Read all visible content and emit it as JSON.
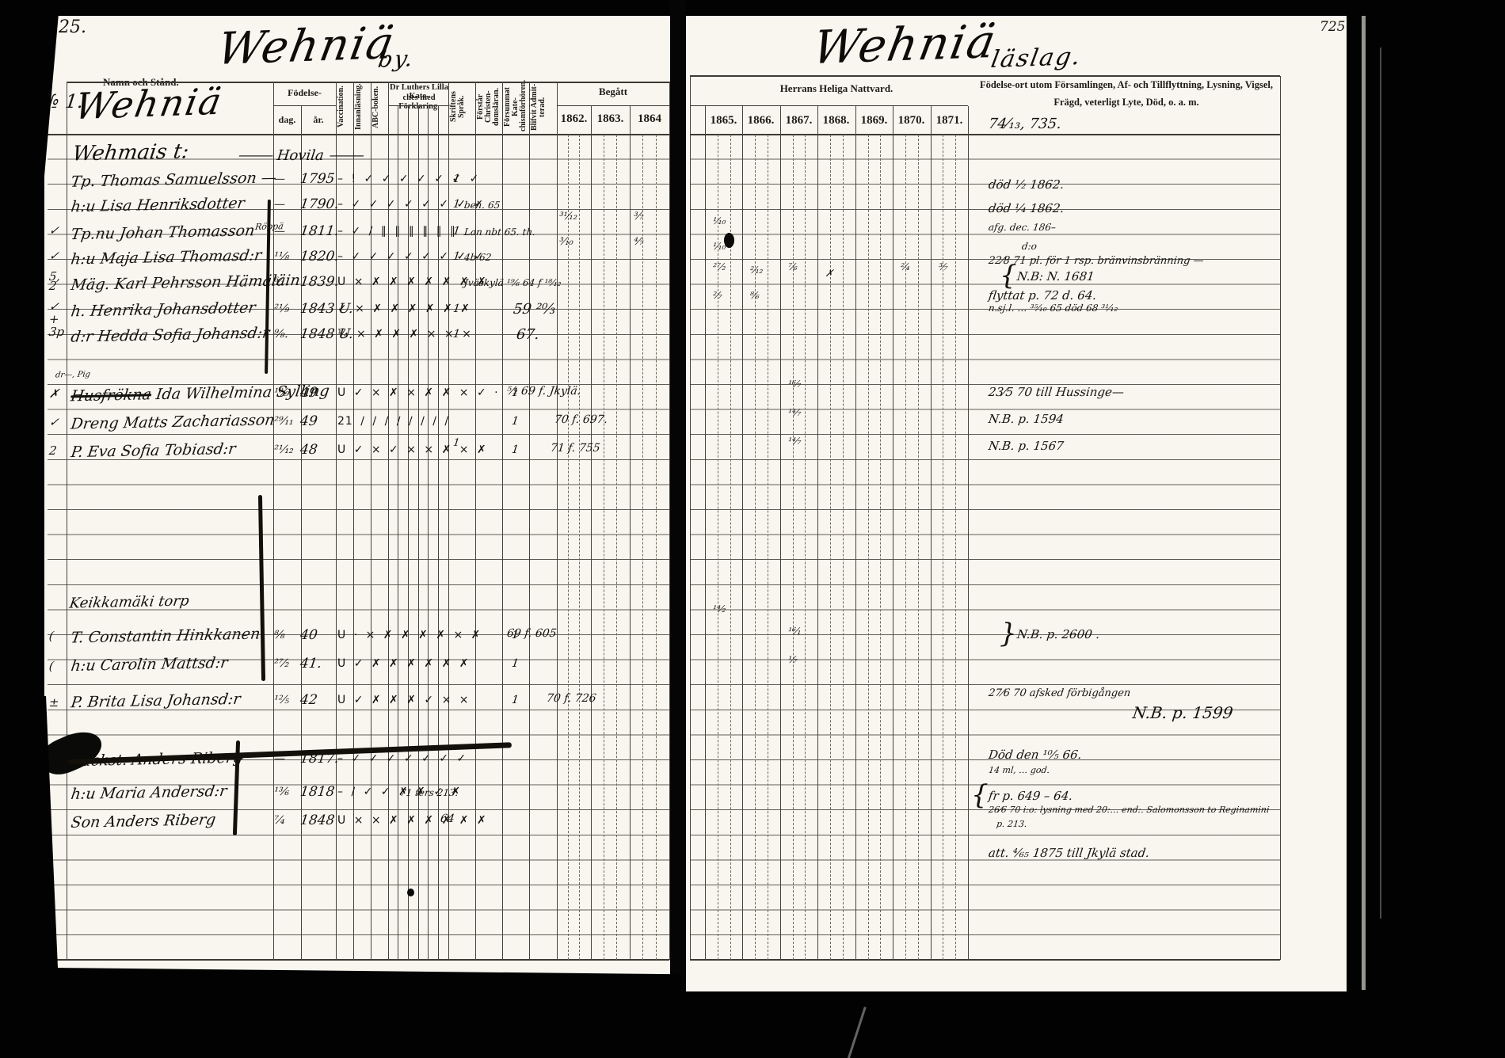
{
  "page_numbers": {
    "left": "125.",
    "right": "725."
  },
  "left_page": {
    "title_script": "Wehniä",
    "title_suffix": "by.",
    "entry_no": "№ 1.",
    "header_script": "Wehniä",
    "header": {
      "namn": "Namn och Stånd.",
      "fodelse": "Födelse-",
      "dag": "dag.",
      "ar": "år.",
      "vaccination": "Vaccination.",
      "innanlasning": "Innanläsning.",
      "abc": "ABC-boken.",
      "kateches_line1": "Dr Luthers Lilla Kate-",
      "kateches_line2": "ches med Förklaring.",
      "kateches_cols": [
        "1.",
        "2.",
        "3.",
        "4",
        "5.",
        "6."
      ],
      "skrift": "Skriftens Språk.",
      "forstar": "Förstår Christen-domsläran.",
      "forsummat": "Försummat Kate-chismförhören.",
      "blifvit": "Blifvit Admit-terad.",
      "begatt": "Begått"
    },
    "years": [
      "1862.",
      "1863.",
      "1864"
    ],
    "rows": [
      {
        "name": "Wehmais t:",
        "name2": "⸻ Hovila ⸻"
      },
      {
        "name": "Tp. Thomas Samuelsson —",
        "dag": "—",
        "ar": "1795",
        "marks": "– ! ✓ ✓ ✓ ✓ ✓ ✓ ✓",
        "skrift": "1"
      },
      {
        "name": "h:u Lisa Henriksdotter",
        "dag": "—",
        "ar": "1790.",
        "marks": "– ✓ ✓ ✓ ✓ ✓ ✓ ✓ ✓",
        "skrift": "1",
        "note": "beh. 65"
      },
      {
        "name": "Tp.nu Johan Thomasson",
        "sup": "Röppä",
        "dag": "—",
        "ar": "1811.",
        "marks": "– ✓ ∕ ∥ ∥ ∥ ∥ ∥ ∥",
        "skrift": "1",
        "note": "Lan nbt 65. th."
      },
      {
        "name": "h:u Maja Lisa Thomasd:r",
        "dag": "¹¹⁄₈",
        "ar": "1820.",
        "marks": "– ✓ ✓ ✓ ✓ ✓ ✓ ✓ ✓",
        "skrift": "1",
        "note": "4b 62"
      },
      {
        "name": "Mäg. Karl Pehrsson Hämäläin",
        "dag": "⁶⁄₁",
        "ar": "1839.",
        "marks": "U × ✗ ✗ ✗ ✗ ✗ ✗ ✗",
        "note": "Jväskylä ¹⁹⁄₆ 64 f ¹⁸⁄₁₂"
      },
      {
        "name": "h. Henrika Johansdotter",
        "dag": "²¹⁄₉",
        "ar": "1843 U.",
        "marks": "✓ × ✗ ✗ ✗ ✗ ✗ ✗",
        "skrift": "1",
        "begatt": "59 ²⁰⁄₃"
      },
      {
        "name": "d:r Hedda Sofia Johansd:r",
        "dag": "⁹⁄₈.",
        "ar": "1848 U.",
        "marks": "¼ × ✗ ✗ ✗ × × ×",
        "skrift": "1",
        "begatt": "67."
      },
      {
        "name": "dr—, Pig"
      },
      {
        "name_struck": "Husfrökna",
        "name": "Ida Wilhelmina Sylling",
        "dag": "¹⁰⁄₉",
        "ar": "49",
        "marks": "U ✓ × ✗ × ✗ ✗ × ✓ ·",
        "blifvit": "1",
        "begatt": "⁵⁄₂ 69 f. Jkylä."
      },
      {
        "name": "Dreng Matts Zachariasson",
        "dag": "²⁹⁄₁₁",
        "ar": "49",
        "marks": "21 ∕ ∕ ∕ ∕ ∕ ∕ ∕ ∕",
        "blifvit": "1",
        "begatt": "70 f. 697."
      },
      {
        "name": "P. Eva Sofia Tobiasd:r",
        "dag": "²¹⁄₁₂",
        "ar": "48",
        "marks": "U ✓ × ✓ × × ✗ × ✗",
        "blifvit": "1",
        "begatt": "71 f. 755"
      },
      {
        "name": "Keikkamäki torp"
      },
      {
        "name": "T. Constantin Hinkkanen",
        "dag": "⁸⁄₈",
        "ar": "40",
        "marks": "U · × ✗ ✗ ✗ ✗ × ✗",
        "blifvit": "1",
        "begatt": "69 f. 605"
      },
      {
        "name": "h:u Carolin Mattsd:r",
        "dag": "²⁷⁄₂",
        "ar": "41.",
        "marks": "U ✓ ✗ ✗ ✗ ✗ ✗ ✗",
        "blifvit": "1"
      },
      {
        "name": "P. Brita Lisa Johansd:r",
        "dag": "¹²⁄₅",
        "ar": "42",
        "marks": "U ✓ ✗ ✗ ✗ ✓ × ×",
        "blifvit": "1",
        "begatt": "70 f. 726"
      },
      {
        "name": "Backst. Anders Riberg",
        "strike": true,
        "dag": "—",
        "ar": "1817.",
        "marks": "– ✓ ✓ ✓ ✓ ✓ ✓ ✓"
      },
      {
        "name": "h:u Maria Andersd:r",
        "dag": "¹³⁄₆",
        "ar": "1818",
        "marks": "– ∕ ✓ ✓ ✗ ✗ ✓ ✗",
        "note": "71 ters 213."
      },
      {
        "name": "Son Anders Riberg",
        "dag": "⁷⁄₄",
        "ar": "1848",
        "marks": "U × × ✗ ✗ ✗ ✗ ✗ ✗",
        "begatt": "64"
      }
    ],
    "stray_marks": [
      "³¹⁄₁₂",
      "³⁄₁₀",
      "³⁄₇",
      "⁴⁄₇",
      "1"
    ],
    "margin_marks": [
      "✓",
      "✓",
      "5,",
      "2",
      "✓",
      "+",
      "3p",
      "✗",
      "✓",
      "2",
      "(",
      "(",
      "±"
    ]
  },
  "right_page": {
    "title_script": "Wehniä",
    "title_suffix": "läslag.",
    "nattvard_label": "Herrans Heliga Nattvard.",
    "years": [
      "1865.",
      "1866.",
      "1867.",
      "1868.",
      "1869.",
      "1870.",
      "1871."
    ],
    "notes_header_line1": "Födelse-ort utom Församlingen, Af- och Tillflyttning, Lysning, Vigsel,",
    "notes_header_line2": "Frägd, veterligt Lyte, Död, o. a. m.",
    "notes": [
      {
        "text": "74⁄₁₃, 735."
      },
      {
        "text": "död ¹⁄₂ 1862."
      },
      {
        "text": "död ¹⁄₄ 1862."
      },
      {
        "text": "afg. dec. 186–"
      },
      {
        "text": "d:o"
      },
      {
        "text": "22⁄8 71 pl. för 1 rsp. bränvinsbränning —"
      },
      {
        "text": "N.B: N. 1681",
        "brace": "{"
      },
      {
        "text": "flyttat p. 72 d. 64."
      },
      {
        "text": "n.sj.l. … ³⁵⁄₁₀ 65      död 68 ³¹⁄₁₂"
      },
      {
        "text": "23⁄5 70 till Hussinge—"
      },
      {
        "text": "N.B. p. 1594"
      },
      {
        "text": "N.B. p. 1567"
      },
      {
        "text": "N.B. p. 2600 .",
        "brace": "}"
      },
      {
        "text": "27⁄6 70 afsked förbigången"
      },
      {
        "text": "N.B. p. 1599"
      },
      {
        "text": "Död den ¹⁰⁄₅ 66."
      },
      {
        "text": "14 ml, … god."
      },
      {
        "text": "fr p. 649 – 64.",
        "brace": "{"
      },
      {
        "text": "26⁄6 70 i:o: lysning med 20:… end:. Salomonsson to Reginamini"
      },
      {
        "text": "p. 213."
      },
      {
        "text": "att. ⁴⁄₆₅ 1875 till Jkylä stad."
      }
    ],
    "year_marks": [
      {
        "year": "1865.",
        "text": "¹⁄₁₀"
      },
      {
        "year": "1865.",
        "text": "¹⁄₁₀"
      },
      {
        "year": "1865.",
        "text": "²⁷⁄₂"
      },
      {
        "year": "1866.",
        "text": "²⁄₁₂"
      },
      {
        "year": "1867.",
        "text": "⁷⁄₆"
      },
      {
        "year": "1868.",
        "text": "✗"
      },
      {
        "year": "1870.",
        "text": "²⁄₄"
      },
      {
        "year": "1871.",
        "text": "³⁄₇"
      },
      {
        "year": "1865.",
        "text": "²⁄₇"
      },
      {
        "year": "1866.",
        "text": "⁸⁄₆"
      },
      {
        "year": "1867.",
        "text": "¹⁶⁄₇"
      },
      {
        "year": "1867.",
        "text": "¹⁴⁄₇"
      },
      {
        "year": "1867.",
        "text": "¹⁴⁄₇"
      },
      {
        "year": "1865.",
        "text": "¹⁴⁄₂"
      },
      {
        "year": "1867.",
        "text": "¹⁶⁄₁"
      },
      {
        "year": "1867.",
        "text": "¹⁄₇"
      }
    ]
  }
}
